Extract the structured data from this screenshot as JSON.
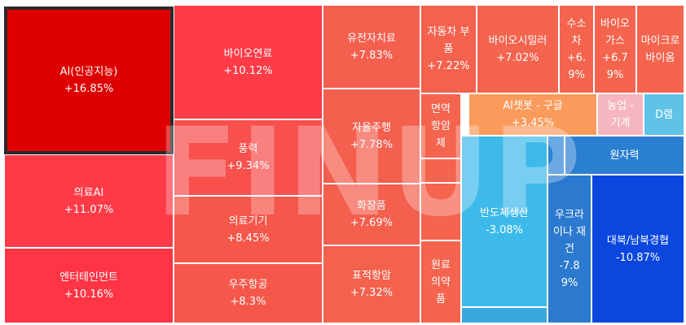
{
  "watermark": {
    "text_a": "FIN",
    "text_b": "UP"
  },
  "tiles": [
    {
      "name": "AI(인공지능)",
      "change": "+16.85%",
      "color": "#de0000",
      "selected": true
    },
    {
      "name": "의료AI",
      "change": "+11.07%",
      "color": "#ff3b48"
    },
    {
      "name": "엔터테인먼트",
      "change": "+10.16%",
      "color": "#ff3545"
    },
    {
      "name": "바이오연료",
      "change": "+10.12%",
      "color": "#ff3b48"
    },
    {
      "name": "풍력",
      "change": "+9.34%",
      "color": "#f7504d"
    },
    {
      "name": "의료기기",
      "change": "+8.45%",
      "color": "#f5574a"
    },
    {
      "name": "우주항공",
      "change": "+8.3%",
      "color": "#f5584a"
    },
    {
      "name": "유전자치료",
      "change": "+7.83%",
      "color": "#f45f4e"
    },
    {
      "name": "자율주행",
      "change": "+7.78%",
      "color": "#f45f4e"
    },
    {
      "name": "화장품",
      "change": "+7.69%",
      "color": "#f45f4e"
    },
    {
      "name": "표적항암",
      "change": "+7.32%",
      "color": "#f4624e"
    },
    {
      "name": "자동차 부품",
      "change": "+7.22%",
      "color": "#f4624e"
    },
    {
      "name": "바이오시밀러",
      "change": "+7.02%",
      "color": "#f4644e"
    },
    {
      "name": "수소차",
      "change": "+6.9%",
      "color": "#f4644e"
    },
    {
      "name": "바이오가스",
      "change": "+6.79%",
      "color": "#f4644e"
    },
    {
      "name": "마이크로바이옴",
      "change": "",
      "color": "#f4644e"
    },
    {
      "name": "면역항암제",
      "change": "",
      "color": "#f4644e"
    },
    {
      "name": "",
      "change": "",
      "color": "#f4644e"
    },
    {
      "name": "",
      "change": "",
      "color": "#f4644e"
    },
    {
      "name": "원료의약품",
      "change": "",
      "color": "#f4644e"
    },
    {
      "name": "AI챗봇 - 구글",
      "change": "+3.45%",
      "color": "#fa9b5c"
    },
    {
      "name": "농업 - 기계",
      "change": "",
      "color": "#f5b6c0"
    },
    {
      "name": "D램",
      "change": "",
      "color": "#5ec3e6"
    },
    {
      "name": "반도체생산",
      "change": "-3.08%",
      "color": "#3db9ea"
    },
    {
      "name": "",
      "change": "",
      "color": "#39a8df"
    },
    {
      "name": "",
      "change": "",
      "color": "#2a84d6"
    },
    {
      "name": "원자력",
      "change": "",
      "color": "#2b7fd1"
    },
    {
      "name": "우크라이나 재건",
      "change": "-7.89%",
      "color": "#2c7acf"
    },
    {
      "name": "대북/남북경협",
      "change": "-10.87%",
      "color": "#0b47df"
    }
  ]
}
